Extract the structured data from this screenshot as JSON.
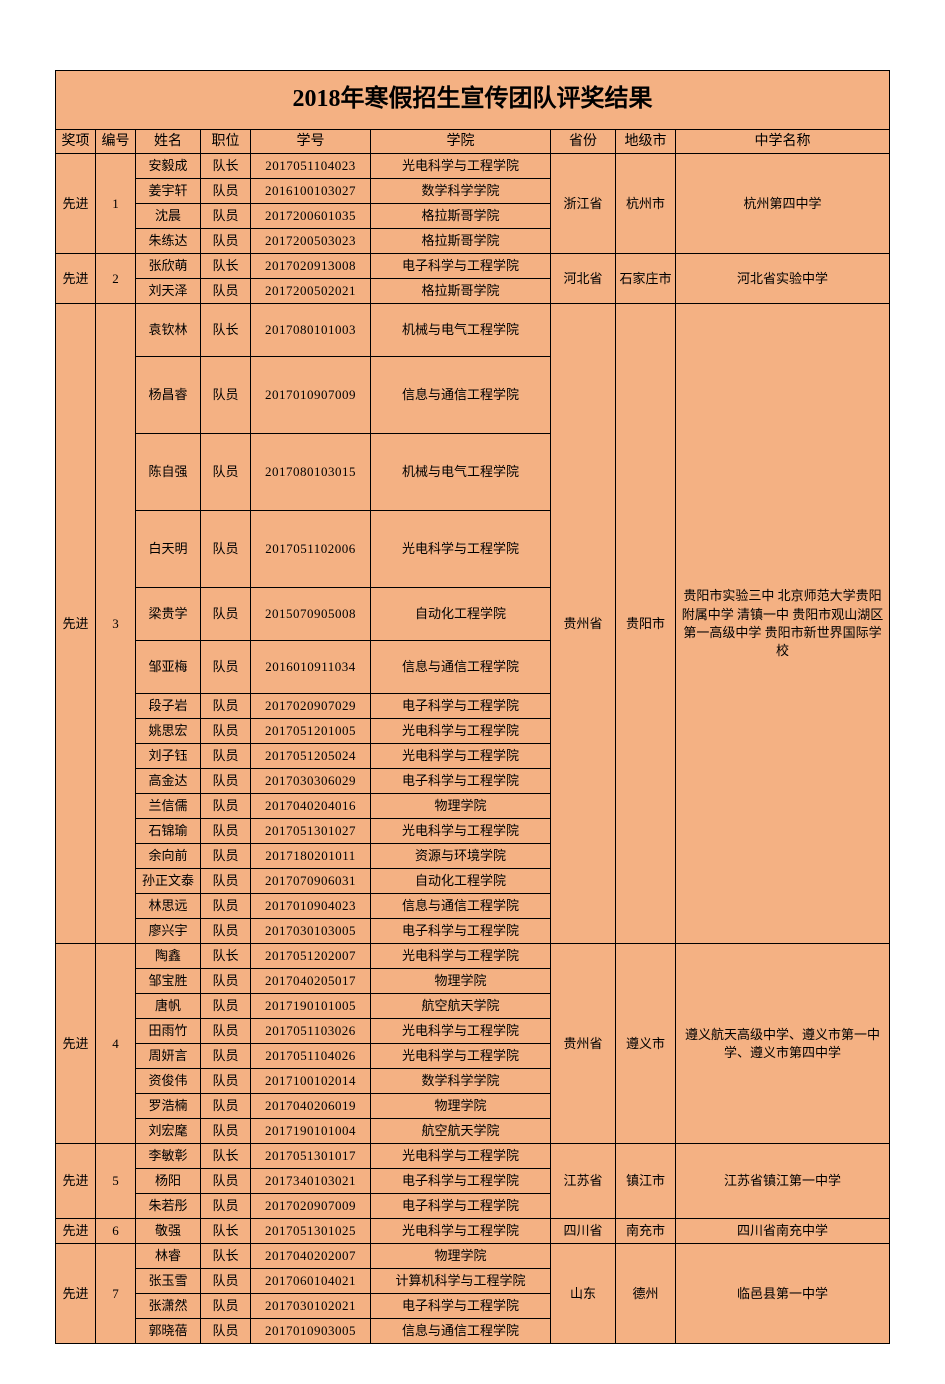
{
  "title": "2018年寒假招生宣传团队评奖结果",
  "headers": {
    "award": "奖项",
    "num": "编号",
    "name": "姓名",
    "role": "职位",
    "sid": "学号",
    "college": "学院",
    "prov": "省份",
    "city": "地级市",
    "school": "中学名称"
  },
  "colors": {
    "cell_bg": "#f4b183",
    "border": "#000000",
    "text": "#000000"
  },
  "groups": [
    {
      "award": "先进",
      "num": "1",
      "prov": "浙江省",
      "city": "杭州市",
      "school": "杭州第四中学",
      "members": [
        {
          "name": "安毅成",
          "role": "队长",
          "sid": "2017051104023",
          "college": "光电科学与工程学院"
        },
        {
          "name": "姜宇轩",
          "role": "队员",
          "sid": "2016100103027",
          "college": "数学科学学院"
        },
        {
          "name": "沈晨",
          "role": "队员",
          "sid": "2017200601035",
          "college": "格拉斯哥学院"
        },
        {
          "name": "朱练达",
          "role": "队员",
          "sid": "2017200503023",
          "college": "格拉斯哥学院"
        }
      ]
    },
    {
      "award": "先进",
      "num": "2",
      "prov": "河北省",
      "city": "石家庄市",
      "school": "河北省实验中学",
      "members": [
        {
          "name": "张欣萌",
          "role": "队长",
          "sid": "2017020913008",
          "college": "电子科学与工程学院"
        },
        {
          "name": "刘天泽",
          "role": "队员",
          "sid": "2017200502021",
          "college": "格拉斯哥学院"
        }
      ]
    },
    {
      "award": "先进",
      "num": "3",
      "prov": "贵州省",
      "city": "贵阳市",
      "school": "贵阳市实验三中 北京师范大学贵阳附属中学 清镇一中 贵阳市观山湖区第一高级中学 贵阳市新世界国际学校",
      "members": [
        {
          "name": "袁钦林",
          "role": "队长",
          "sid": "2017080101003",
          "college": "机械与电气工程学院",
          "h": "med"
        },
        {
          "name": "杨昌睿",
          "role": "队员",
          "sid": "2017010907009",
          "college": "信息与通信工程学院",
          "h": "tall"
        },
        {
          "name": "陈自强",
          "role": "队员",
          "sid": "2017080103015",
          "college": "机械与电气工程学院",
          "h": "tall"
        },
        {
          "name": "白天明",
          "role": "队员",
          "sid": "2017051102006",
          "college": "光电科学与工程学院",
          "h": "tall"
        },
        {
          "name": "梁贵学",
          "role": "队员",
          "sid": "2015070905008",
          "college": "自动化工程学院",
          "h": "med"
        },
        {
          "name": "邹亚梅",
          "role": "队员",
          "sid": "2016010911034",
          "college": "信息与通信工程学院",
          "h": "med"
        },
        {
          "name": "段子岩",
          "role": "队员",
          "sid": "2017020907029",
          "college": "电子科学与工程学院"
        },
        {
          "name": "姚思宏",
          "role": "队员",
          "sid": "2017051201005",
          "college": "光电科学与工程学院"
        },
        {
          "name": "刘子钰",
          "role": "队员",
          "sid": "2017051205024",
          "college": "光电科学与工程学院"
        },
        {
          "name": "高金达",
          "role": "队员",
          "sid": "2017030306029",
          "college": "电子科学与工程学院"
        },
        {
          "name": "兰信儒",
          "role": "队员",
          "sid": "2017040204016",
          "college": "物理学院"
        },
        {
          "name": "石锦瑜",
          "role": "队员",
          "sid": "2017051301027",
          "college": "光电科学与工程学院"
        },
        {
          "name": "余向前",
          "role": "队员",
          "sid": "2017180201011",
          "college": "资源与环境学院"
        },
        {
          "name": "孙正文泰",
          "role": "队员",
          "sid": "2017070906031",
          "college": "自动化工程学院"
        },
        {
          "name": "林思远",
          "role": "队员",
          "sid": "2017010904023",
          "college": "信息与通信工程学院"
        },
        {
          "name": "廖兴宇",
          "role": "队员",
          "sid": "2017030103005",
          "college": "电子科学与工程学院"
        }
      ]
    },
    {
      "award": "先进",
      "num": "4",
      "prov": "贵州省",
      "city": "遵义市",
      "school": "遵义航天高级中学、遵义市第一中学、遵义市第四中学",
      "members": [
        {
          "name": "陶鑫",
          "role": "队长",
          "sid": "2017051202007",
          "college": "光电科学与工程学院"
        },
        {
          "name": "邹宝胜",
          "role": "队员",
          "sid": "2017040205017",
          "college": "物理学院"
        },
        {
          "name": "唐帆",
          "role": "队员",
          "sid": "2017190101005",
          "college": "航空航天学院"
        },
        {
          "name": "田雨竹",
          "role": "队员",
          "sid": "2017051103026",
          "college": "光电科学与工程学院"
        },
        {
          "name": "周妍言",
          "role": "队员",
          "sid": "2017051104026",
          "college": "光电科学与工程学院"
        },
        {
          "name": "资俊伟",
          "role": "队员",
          "sid": "2017100102014",
          "college": "数学科学学院"
        },
        {
          "name": "罗浩楠",
          "role": "队员",
          "sid": "2017040206019",
          "college": "物理学院"
        },
        {
          "name": "刘宏麾",
          "role": "队员",
          "sid": "2017190101004",
          "college": "航空航天学院"
        }
      ]
    },
    {
      "award": "先进",
      "num": "5",
      "prov": "江苏省",
      "city": "镇江市",
      "school": "江苏省镇江第一中学",
      "members": [
        {
          "name": "李敏彰",
          "role": "队长",
          "sid": "2017051301017",
          "college": "光电科学与工程学院"
        },
        {
          "name": "杨阳",
          "role": "队员",
          "sid": "2017340103021",
          "college": "电子科学与工程学院"
        },
        {
          "name": "朱若彤",
          "role": "队员",
          "sid": "2017020907009",
          "college": "电子科学与工程学院"
        }
      ]
    },
    {
      "award": "先进",
      "num": "6",
      "prov": "四川省",
      "city": "南充市",
      "school": "四川省南充中学",
      "members": [
        {
          "name": "敬强",
          "role": "队长",
          "sid": "2017051301025",
          "college": "光电科学与工程学院"
        }
      ]
    },
    {
      "award": "先进",
      "num": "7",
      "prov": "山东",
      "city": "德州",
      "school": "临邑县第一中学",
      "members": [
        {
          "name": "林睿",
          "role": "队长",
          "sid": "2017040202007",
          "college": "物理学院"
        },
        {
          "name": "张玉雪",
          "role": "队员",
          "sid": "2017060104021",
          "college": "计算机科学与工程学院"
        },
        {
          "name": "张潇然",
          "role": "队员",
          "sid": "2017030102021",
          "college": "电子科学与工程学院"
        },
        {
          "name": "郭晓蓓",
          "role": "队员",
          "sid": "2017010903005",
          "college": "信息与通信工程学院"
        }
      ]
    }
  ]
}
